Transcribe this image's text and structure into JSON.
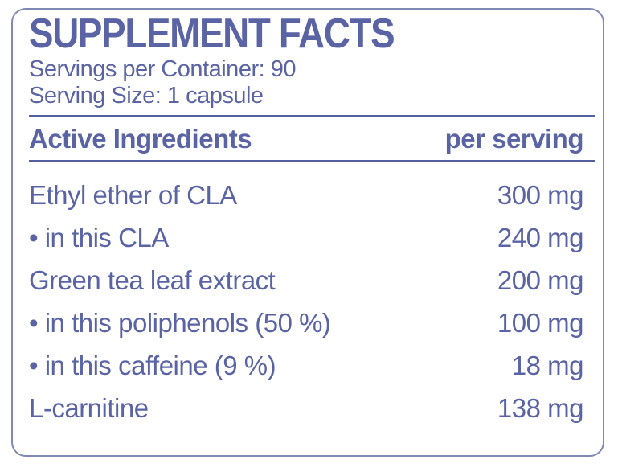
{
  "panel": {
    "title": "SUPPLEMENT FACTS",
    "servings_per_container": "Servings per Container: 90",
    "serving_size": "Serving Size: 1 capsule"
  },
  "table": {
    "header": {
      "ingredient_col": "Active Ingredients",
      "amount_col": "per serving"
    },
    "rows": [
      {
        "name": "Ethyl ether of CLA",
        "amount": "300 mg"
      },
      {
        "name": "• in this CLA",
        "amount": "240 mg"
      },
      {
        "name": "Green tea leaf extract",
        "amount": "200 mg"
      },
      {
        "name": "• in this poliphenols (50 %)",
        "amount": "100 mg"
      },
      {
        "name": "• in this caffeine (9 %)",
        "amount": "18 mg"
      },
      {
        "name": "L-carnitine",
        "amount": "138 mg"
      }
    ]
  },
  "colors": {
    "text": "#5a64a4",
    "rule": "#5560a3",
    "border": "#8089b4",
    "background": "#ffffff"
  }
}
